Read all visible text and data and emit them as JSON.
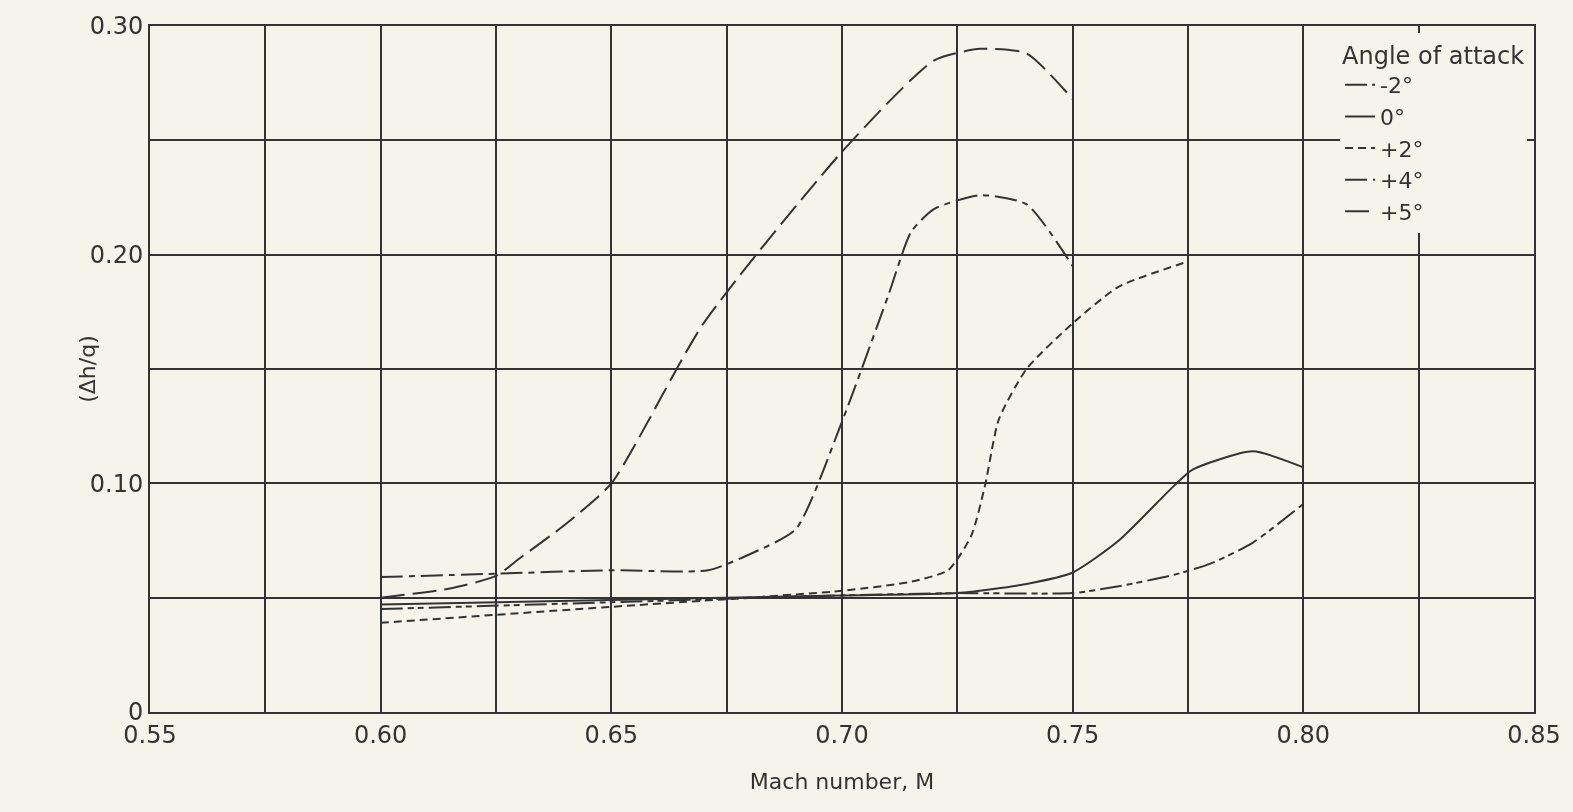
{
  "chart_data": {
    "type": "line",
    "xlabel": "Mach number, M",
    "ylabel": "(Δh/q)",
    "legend_title": "Angle of attack",
    "legend": "top right",
    "grid": true,
    "marker": "none",
    "xlim": [
      0.55,
      0.85
    ],
    "ylim": [
      0,
      0.3
    ],
    "xticks": [
      {
        "value": 0.55,
        "label": "0.55"
      },
      {
        "value": 0.575,
        "label": null
      },
      {
        "value": 0.6,
        "label": "0.60"
      },
      {
        "value": 0.625,
        "label": null
      },
      {
        "value": 0.65,
        "label": "0.65"
      },
      {
        "value": 0.675,
        "label": null
      },
      {
        "value": 0.7,
        "label": "0.70"
      },
      {
        "value": 0.725,
        "label": null
      },
      {
        "value": 0.75,
        "label": "0.75"
      },
      {
        "value": 0.775,
        "label": null
      },
      {
        "value": 0.8,
        "label": "0.80"
      },
      {
        "value": 0.825,
        "label": null
      },
      {
        "value": 0.85,
        "label": "0.85"
      }
    ],
    "yticks": [
      0,
      {
        "value": 0.05,
        "label": null
      },
      {
        "value": 0.1,
        "label": "0.10"
      },
      {
        "value": 0.15,
        "label": null
      },
      {
        "value": 0.2,
        "label": "0.20"
      },
      {
        "value": 0.25,
        "label": null
      },
      {
        "value": 0.3,
        "label": "0.30"
      }
    ],
    "series": [
      {
        "name": "-2°",
        "color": "#333333",
        "line_style": "longdashdot",
        "x": [
          0.6,
          0.65,
          0.7,
          0.725,
          0.75,
          0.76,
          0.772,
          0.78,
          0.789,
          0.8
        ],
        "values": [
          0.045,
          0.048,
          0.051,
          0.052,
          0.052,
          0.055,
          0.06,
          0.065,
          0.074,
          0.091
        ]
      },
      {
        "name": "0°",
        "color": "#333333",
        "line_style": "solid",
        "x": [
          0.6,
          0.65,
          0.7,
          0.725,
          0.74,
          0.75,
          0.76,
          0.772,
          0.776,
          0.789,
          0.8
        ],
        "values": [
          0.047,
          0.049,
          0.051,
          0.052,
          0.056,
          0.061,
          0.075,
          0.099,
          0.106,
          0.114,
          0.107
        ]
      },
      {
        "name": "+2°",
        "color": "#333333",
        "line_style": "dashed",
        "x": [
          0.6,
          0.65,
          0.7,
          0.715,
          0.723,
          0.728,
          0.731,
          0.734,
          0.74,
          0.75,
          0.76,
          0.775
        ],
        "values": [
          0.039,
          0.046,
          0.053,
          0.057,
          0.062,
          0.077,
          0.099,
          0.128,
          0.15,
          0.17,
          0.186,
          0.197
        ]
      },
      {
        "name": "+4°",
        "color": "#333333",
        "line_style": "dashdot",
        "x": [
          0.6,
          0.625,
          0.65,
          0.671,
          0.68,
          0.69,
          0.7,
          0.71,
          0.715,
          0.72,
          0.73,
          0.74,
          0.75
        ],
        "values": [
          0.059,
          0.0605,
          0.062,
          0.062,
          0.069,
          0.08,
          0.127,
          0.182,
          0.21,
          0.22,
          0.226,
          0.222,
          0.195
        ]
      },
      {
        "name": "+5°",
        "color": "#333333",
        "line_style": "longdash",
        "x": [
          0.6,
          0.615,
          0.625,
          0.63,
          0.64,
          0.65,
          0.67,
          0.7,
          0.72,
          0.73,
          0.74,
          0.75
        ],
        "values": [
          0.05,
          0.054,
          0.0595,
          0.067,
          0.082,
          0.1,
          0.17,
          0.245,
          0.285,
          0.29,
          0.288,
          0.268
        ]
      }
    ]
  }
}
